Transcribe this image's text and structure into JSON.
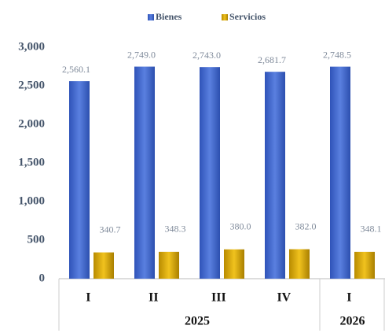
{
  "chart_data": {
    "type": "bar",
    "category_groups": [
      {
        "label": "2025",
        "categories": [
          "I",
          "II",
          "III",
          "IV"
        ]
      },
      {
        "label": "2026",
        "categories": [
          "I"
        ]
      }
    ],
    "series": [
      {
        "name": "Bienes",
        "color": "#4169d2",
        "values": [
          2560.1,
          2749.0,
          2743.0,
          2681.7,
          2748.5
        ],
        "value_labels": [
          "2,560.1",
          "2,749.0",
          "2,743.0",
          "2,681.7",
          "2,748.5"
        ]
      },
      {
        "name": "Servicios",
        "color": "#d9aa05",
        "values": [
          340.7,
          348.3,
          380.0,
          382.0,
          348.1
        ],
        "value_labels": [
          "340.7",
          "348.3",
          "380.0",
          "382.0",
          "348.1"
        ]
      }
    ],
    "ylim": [
      0,
      3000
    ],
    "yticks": [
      0,
      500,
      {
        "value": 1000,
        "label": "1,000"
      },
      {
        "value": 1500,
        "label": "1,500"
      },
      {
        "value": 2000,
        "label": "2,000"
      },
      {
        "value": 2500,
        "label": "2,500"
      },
      {
        "value": 3000,
        "label": "3,000"
      }
    ],
    "legend": "top"
  }
}
